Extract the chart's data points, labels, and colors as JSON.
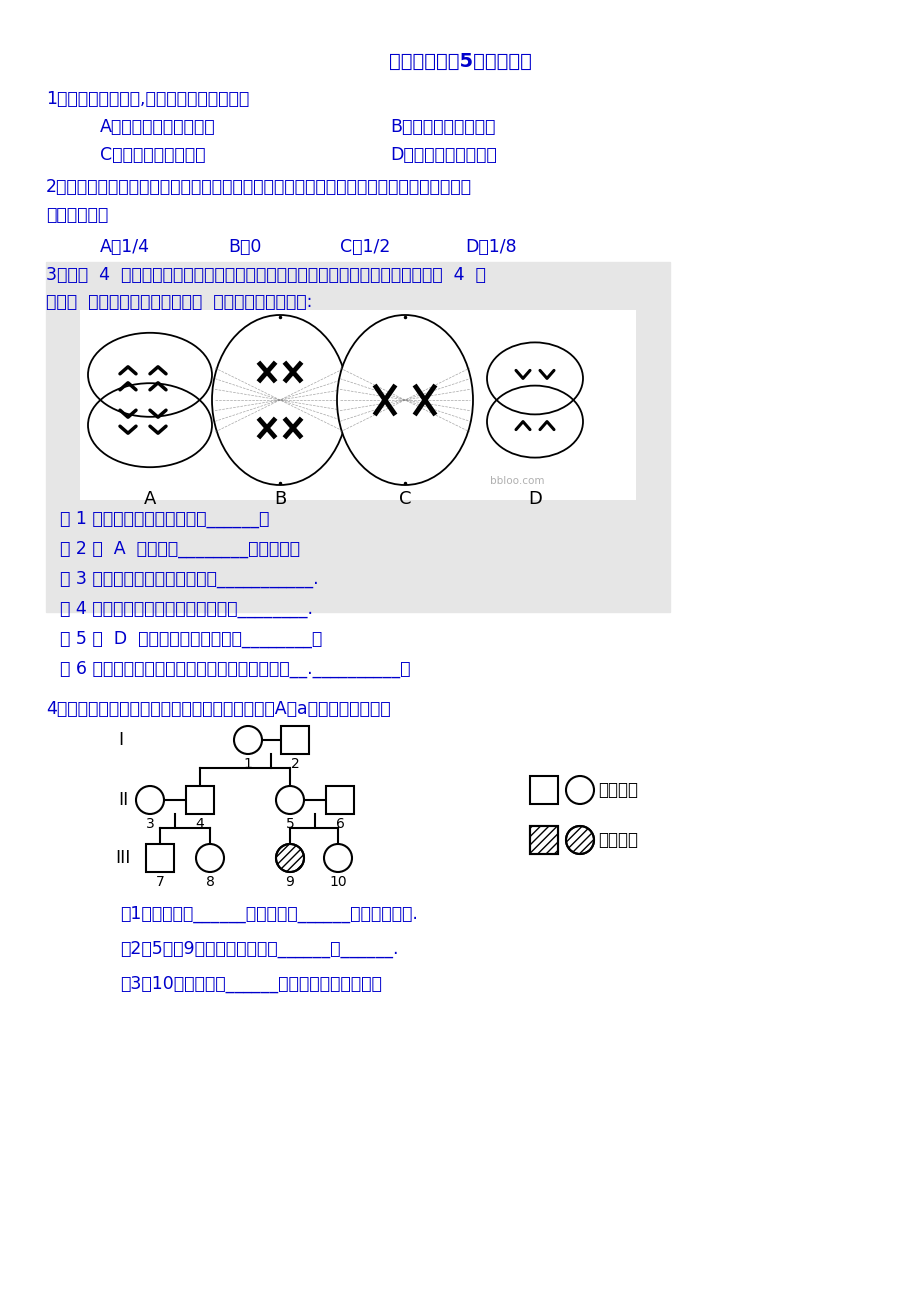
{
  "title": "高一下学期第5周周测试题",
  "bg_color": "#ffffff",
  "text_color": "#0000CC",
  "black": "#000000",
  "q1": "1、减数分裂过程中,染色体数目减半发生在",
  "q1a": "A．精原细胞滋长增大时",
  "q1b": "B．第一次分裂结束时",
  "q1c": "C．第二次分裂结束时",
  "q1d": "D．精细胞变成精子时",
  "q2": "2、一对夫妻色觉正常，他们的父母也均正常，但妻子的弟弟患色盲，则这对夫妻生一个色盲",
  "q2b": "儿子的几率是",
  "q2a": "A．1/4",
  "q2ab": "B．0",
  "q2ac": "C．1/2",
  "q2ad": "D．1/8",
  "q3": "3、下图  4  个细胞是某雌性动物体内不同细胞分裂示意图（假设该动物的体细胞有  4  条",
  "q3b": "染色体  ，无基因突变和交叉互换  ），请回答以下问题:",
  "q3_1": "（ 1 ）图中属于减数分裂的有______。",
  "q3_2": "（ 2 ）  A  细胞中有________条染色体。",
  "q3_3": "（ 3 ）具有同源染色体的细胞有___________.",
  "q3_4": "（ 4 ）不具有姐妹染色单体的细胞有________.",
  "q3_5": "（ 5 ）  D  产生的子细胞的名称是________。",
  "q3_6": "（ 6 ）分裂过程中会发生等位基因分离的细胞是__.__________。",
  "q4": "4、如图是某种遗传病的家族系谱．据图回答（以A、a表示有关基因）：",
  "q4_1": "（1）该病是由______染色体上的______性基因控制的.",
  "q4_2": "（2）5号和9号的基因型分别是______和______.",
  "q4_3": "（3）10号基因型是______，她是杂合子的概率是",
  "legend_normal": "正常男女",
  "legend_affected": "患病男女"
}
